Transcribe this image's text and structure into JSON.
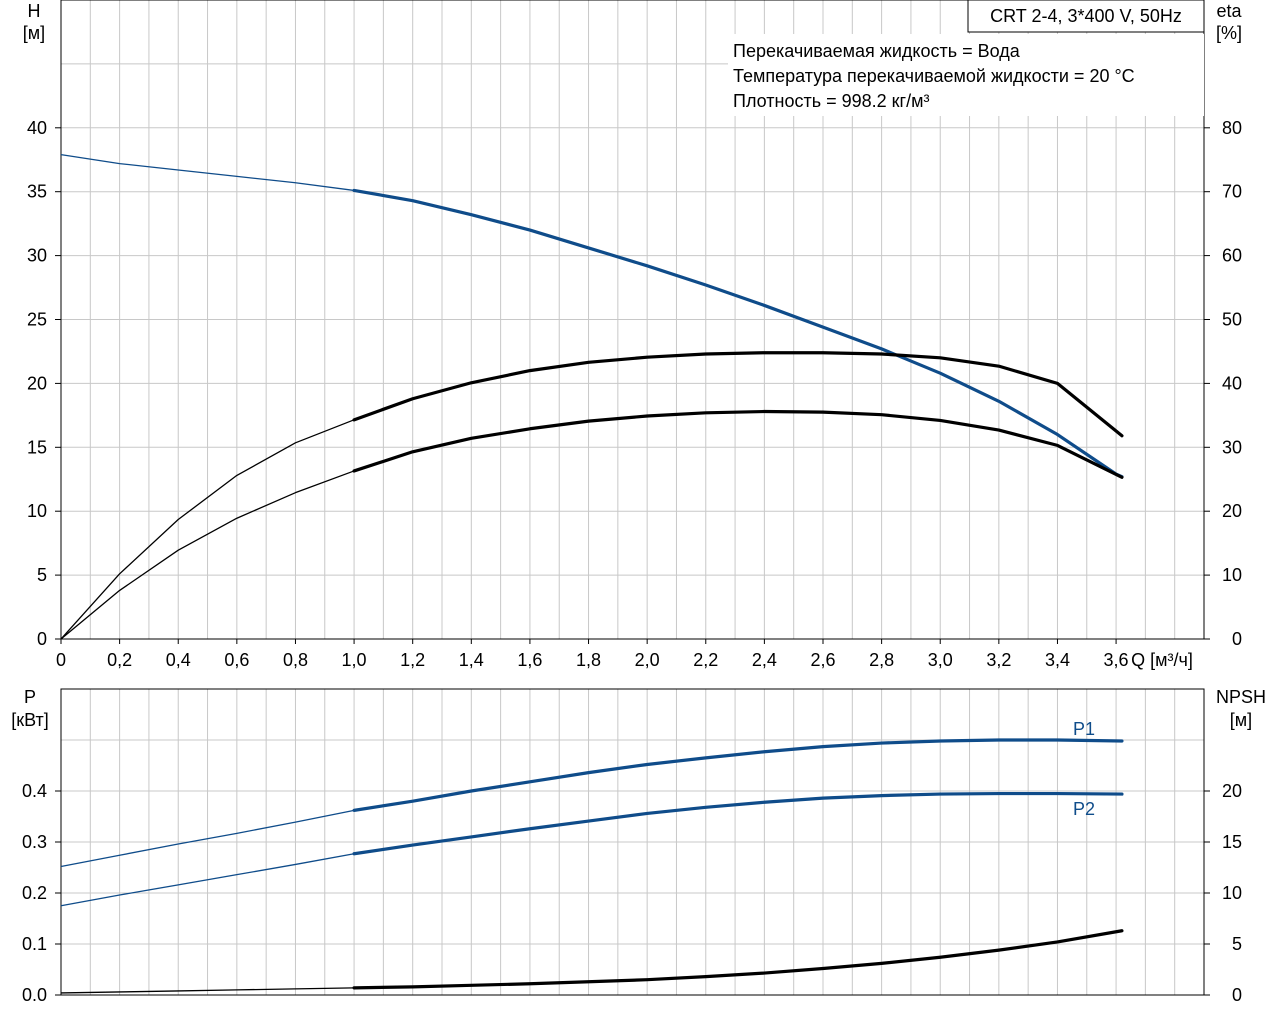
{
  "chart_data": [
    {
      "type": "line",
      "model_label": "CRT 2-4, 3*400 V, 50Hz",
      "info_lines": [
        "Перекачиваемая жидкость = Вода",
        "Температура перекачиваемой жидкости = 20 °C",
        "Плотность = 998.2 кг/м³"
      ],
      "xlabel": "Q [м³/ч]",
      "ylabel_left": [
        "H",
        "[м]"
      ],
      "ylabel_right": [
        "eta",
        "[%]"
      ],
      "xlim": [
        0,
        3.9
      ],
      "ylim_left": [
        0,
        50
      ],
      "ylim_right": [
        0,
        100
      ],
      "x_ticks": [
        0,
        0.2,
        0.4,
        0.6,
        0.8,
        1.0,
        1.2,
        1.4,
        1.6,
        1.8,
        2.0,
        2.2,
        2.4,
        2.6,
        2.8,
        3.0,
        3.2,
        3.4,
        3.6
      ],
      "x_tick_labels": [
        "0",
        "0,2",
        "0,4",
        "0,6",
        "0,8",
        "1,0",
        "1,2",
        "1,4",
        "1,6",
        "1,8",
        "2,0",
        "2,2",
        "2,4",
        "2,6",
        "2,8",
        "3,0",
        "3,2",
        "3,4",
        "3,6"
      ],
      "y_ticks_left": [
        0,
        5,
        10,
        15,
        20,
        25,
        30,
        35,
        40
      ],
      "y_tick_labels_left": [
        "0",
        "5",
        "10",
        "15",
        "20",
        "25",
        "30",
        "35",
        "40"
      ],
      "y_ticks_right": [
        0,
        10,
        20,
        30,
        40,
        50,
        60,
        70,
        80
      ],
      "y_tick_labels_right": [
        "0",
        "10",
        "20",
        "30",
        "40",
        "50",
        "60",
        "70",
        "80"
      ],
      "grid": true,
      "series": [
        {
          "key": "H",
          "axis": "left",
          "color": "#0f4c8a",
          "x": [
            0,
            0.2,
            0.4,
            0.6,
            0.8,
            1.0,
            1.2,
            1.4,
            1.6,
            1.8,
            2.0,
            2.2,
            2.4,
            2.6,
            2.8,
            3.0,
            3.2,
            3.4,
            3.6,
            3.62
          ],
          "y": [
            37.9,
            37.2,
            36.7,
            36.2,
            35.7,
            35.1,
            34.3,
            33.2,
            32.0,
            30.6,
            29.2,
            27.7,
            26.1,
            24.4,
            22.7,
            20.8,
            18.6,
            16.0,
            12.9,
            12.7
          ]
        },
        {
          "key": "eta1",
          "axis": "right",
          "color": "#000000",
          "x": [
            0,
            0.2,
            0.4,
            0.6,
            0.8,
            1.0,
            1.2,
            1.4,
            1.6,
            1.8,
            2.0,
            2.2,
            2.4,
            2.6,
            2.8,
            3.0,
            3.2,
            3.4,
            3.62
          ],
          "y": [
            0,
            10.2,
            18.7,
            25.6,
            30.7,
            34.3,
            37.6,
            40.1,
            42.0,
            43.3,
            44.1,
            44.6,
            44.8,
            44.8,
            44.6,
            44.0,
            42.7,
            40.0,
            31.8
          ]
        },
        {
          "key": "eta2",
          "axis": "right",
          "color": "#000000",
          "x": [
            0,
            0.2,
            0.4,
            0.6,
            0.8,
            1.0,
            1.2,
            1.4,
            1.6,
            1.8,
            2.0,
            2.2,
            2.4,
            2.6,
            2.8,
            3.0,
            3.2,
            3.4,
            3.62
          ],
          "y": [
            0,
            7.6,
            13.9,
            18.9,
            22.9,
            26.3,
            29.3,
            31.4,
            32.9,
            34.1,
            34.9,
            35.4,
            35.6,
            35.5,
            35.1,
            34.2,
            32.7,
            30.3,
            25.3
          ]
        }
      ]
    },
    {
      "type": "line",
      "ylabel_left": [
        "P",
        "[кВт]"
      ],
      "ylabel_right": [
        "NPSH",
        "[м]"
      ],
      "xlim": [
        0,
        3.9
      ],
      "ylim_left": [
        0,
        0.6
      ],
      "ylim_right": [
        0,
        30
      ],
      "y_ticks_left": [
        0,
        0.1,
        0.2,
        0.3,
        0.4
      ],
      "y_tick_labels_left": [
        "0.0",
        "0.1",
        "0.2",
        "0.3",
        "0.4"
      ],
      "y_ticks_right": [
        0,
        5,
        10,
        15,
        20
      ],
      "y_tick_labels_right": [
        "0",
        "5",
        "10",
        "15",
        "20"
      ],
      "grid": true,
      "series": [
        {
          "key": "P1",
          "name": "P1",
          "axis": "left",
          "color": "#0f4c8a",
          "x": [
            0,
            0.2,
            0.4,
            0.6,
            0.8,
            1.0,
            1.2,
            1.4,
            1.6,
            1.8,
            2.0,
            2.2,
            2.4,
            2.6,
            2.8,
            3.0,
            3.2,
            3.4,
            3.62
          ],
          "y": [
            0.252,
            0.274,
            0.296,
            0.317,
            0.339,
            0.362,
            0.38,
            0.4,
            0.418,
            0.436,
            0.452,
            0.465,
            0.477,
            0.487,
            0.494,
            0.498,
            0.5,
            0.5,
            0.498
          ]
        },
        {
          "key": "P2",
          "name": "P2",
          "axis": "left",
          "color": "#0f4c8a",
          "x": [
            0,
            0.2,
            0.4,
            0.6,
            0.8,
            1.0,
            1.2,
            1.4,
            1.6,
            1.8,
            2.0,
            2.2,
            2.4,
            2.6,
            2.8,
            3.0,
            3.2,
            3.4,
            3.62
          ],
          "y": [
            0.175,
            0.196,
            0.216,
            0.236,
            0.256,
            0.277,
            0.294,
            0.31,
            0.326,
            0.341,
            0.356,
            0.368,
            0.378,
            0.386,
            0.391,
            0.394,
            0.395,
            0.395,
            0.394
          ]
        },
        {
          "key": "NPSH",
          "axis": "right",
          "color": "#000000",
          "x": [
            0,
            0.2,
            0.4,
            0.6,
            0.8,
            1.0,
            1.2,
            1.4,
            1.6,
            1.8,
            2.0,
            2.2,
            2.4,
            2.6,
            2.8,
            3.0,
            3.2,
            3.4,
            3.62
          ],
          "y": [
            0.2,
            0.3,
            0.4,
            0.5,
            0.6,
            0.7,
            0.8,
            0.95,
            1.1,
            1.3,
            1.5,
            1.8,
            2.15,
            2.6,
            3.1,
            3.7,
            4.4,
            5.2,
            6.3
          ]
        }
      ]
    }
  ]
}
